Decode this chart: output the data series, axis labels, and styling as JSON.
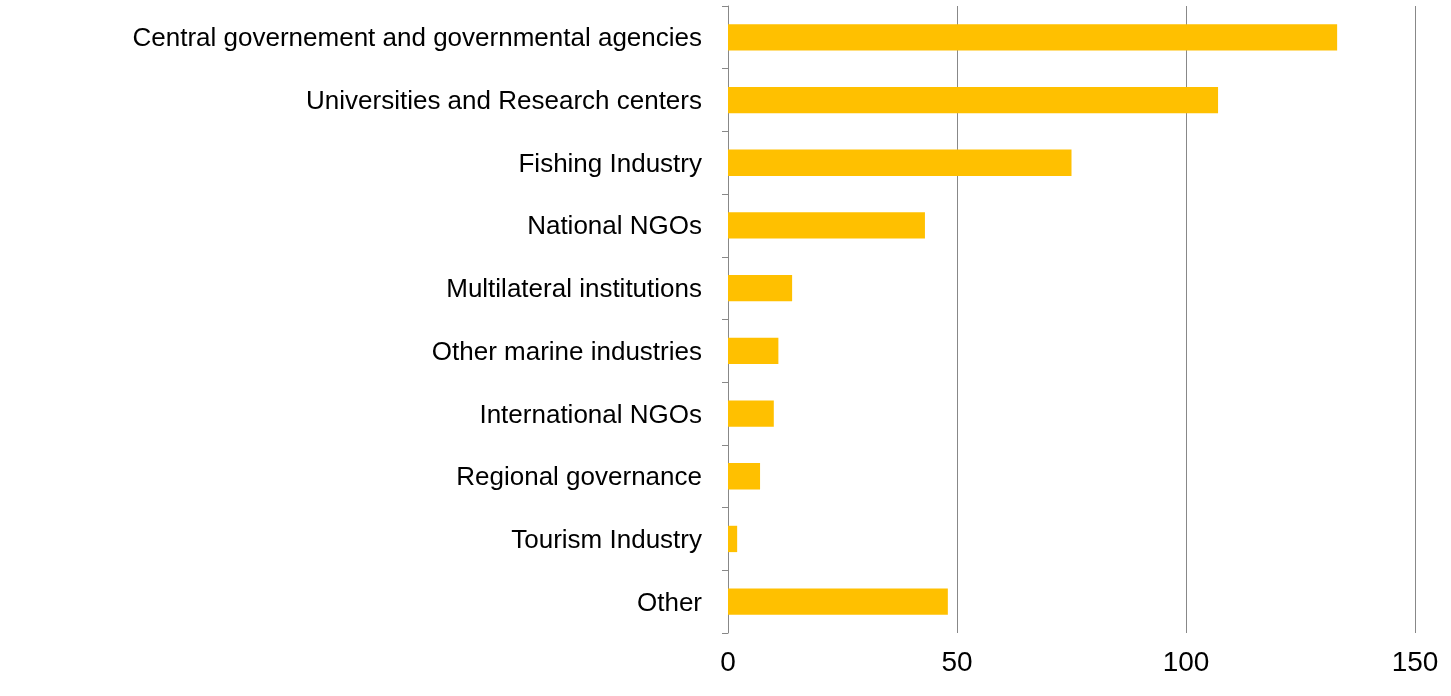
{
  "chart_data": {
    "type": "bar",
    "orientation": "horizontal",
    "categories": [
      "Central governement and governmental agencies",
      "Universities and Research centers",
      "Fishing Industry",
      "National NGOs",
      "Multilateral institutions",
      "Other marine industries",
      "International NGOs",
      "Regional governance",
      "Tourism Industry",
      "Other"
    ],
    "values": [
      133,
      107,
      75,
      43,
      14,
      11,
      10,
      7,
      2,
      48
    ],
    "color": "#ffc000",
    "xlim": [
      0,
      150
    ],
    "xticks": [
      0,
      50,
      100,
      150
    ],
    "grid": "x"
  }
}
